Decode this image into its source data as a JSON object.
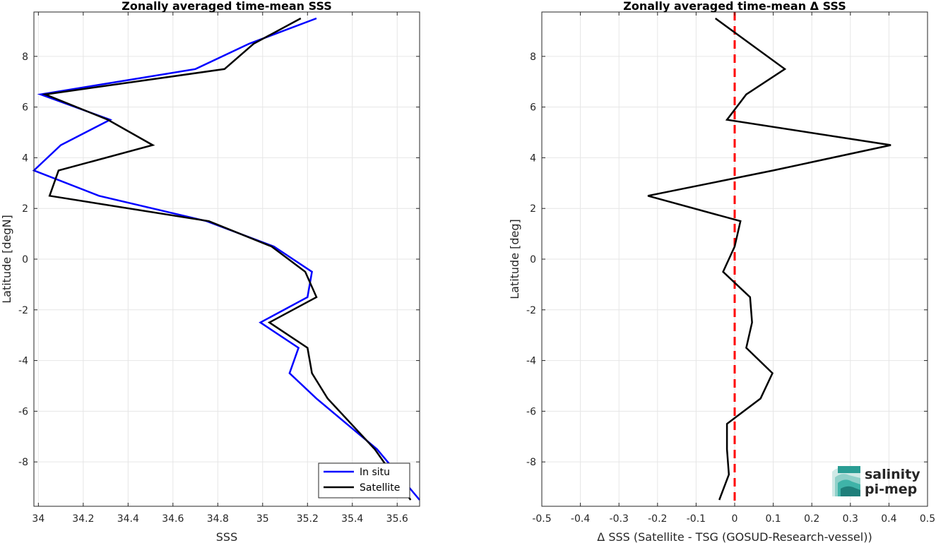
{
  "chart_data": [
    {
      "type": "line",
      "title": "Zonally averaged time-mean SSS",
      "xlabel": "SSS",
      "ylabel": "Latitude [degN]",
      "xlim": [
        33.98,
        35.7
      ],
      "ylim": [
        -9.75,
        9.75
      ],
      "xticks": [
        34,
        34.2,
        34.4,
        34.6,
        34.8,
        35,
        35.2,
        35.4,
        35.6
      ],
      "yticks": [
        -8,
        -6,
        -4,
        -2,
        0,
        2,
        4,
        6,
        8
      ],
      "grid": true,
      "legend_position": "bottom-right",
      "series": [
        {
          "name": "In situ",
          "color": "#0000ff",
          "x": [
            35.24,
            34.94,
            34.7,
            34.01,
            34.32,
            34.1,
            33.98,
            34.27,
            34.75,
            35.05,
            35.22,
            35.2,
            34.99,
            35.16,
            35.12,
            35.24,
            35.51,
            35.7
          ],
          "y": [
            9.5,
            8.5,
            7.5,
            6.5,
            5.5,
            4.5,
            3.5,
            2.5,
            1.5,
            0.5,
            -0.5,
            -1.5,
            -2.5,
            -3.5,
            -4.5,
            -5.5,
            -7.5,
            -9.5
          ]
        },
        {
          "name": "Satellite",
          "color": "#000000",
          "x": [
            35.17,
            34.96,
            34.83,
            34.03,
            34.31,
            34.51,
            34.09,
            34.05,
            34.76,
            35.04,
            35.19,
            35.24,
            35.03,
            35.2,
            35.22,
            35.29,
            35.5,
            35.66
          ],
          "y": [
            9.5,
            8.5,
            7.5,
            6.5,
            5.5,
            4.5,
            3.5,
            2.5,
            1.5,
            0.5,
            -0.5,
            -1.5,
            -2.5,
            -3.5,
            -4.5,
            -5.5,
            -7.5,
            -9.5
          ]
        }
      ]
    },
    {
      "type": "line",
      "title": "Zonally averaged time-mean Δ SSS",
      "xlabel": "Δ SSS (Satellite - TSG (GOSUD-Research-vessel))",
      "ylabel": "Latitude [deg]",
      "xlim": [
        -0.5,
        0.5
      ],
      "ylim": [
        -9.75,
        9.75
      ],
      "xticks": [
        -0.5,
        -0.4,
        -0.3,
        -0.2,
        -0.1,
        0,
        0.1,
        0.2,
        0.3,
        0.4,
        0.5
      ],
      "yticks": [
        -8,
        -6,
        -4,
        -2,
        0,
        2,
        4,
        6,
        8
      ],
      "grid": true,
      "reference_line": {
        "x": 0,
        "color": "#ff0000",
        "style": "dashed"
      },
      "series": [
        {
          "color": "#000000",
          "x": [
            -0.05,
            0.04,
            0.13,
            0.03,
            -0.02,
            0.405,
            0.1,
            -0.225,
            0.015,
            0.0,
            -0.03,
            0.04,
            0.045,
            0.03,
            0.098,
            0.067,
            -0.02,
            -0.02,
            -0.015,
            -0.04
          ],
          "y": [
            9.5,
            8.5,
            7.5,
            6.5,
            5.5,
            4.5,
            3.5,
            2.5,
            1.5,
            0.5,
            -0.5,
            -1.5,
            -2.5,
            -3.5,
            -4.5,
            -5.5,
            -6.5,
            -7.5,
            -8.5,
            -9.5
          ]
        }
      ]
    }
  ],
  "logo": {
    "line1": "salinity",
    "line2": "pi-mep",
    "color1": "#27a9a0",
    "color2": "#1d5f63"
  }
}
